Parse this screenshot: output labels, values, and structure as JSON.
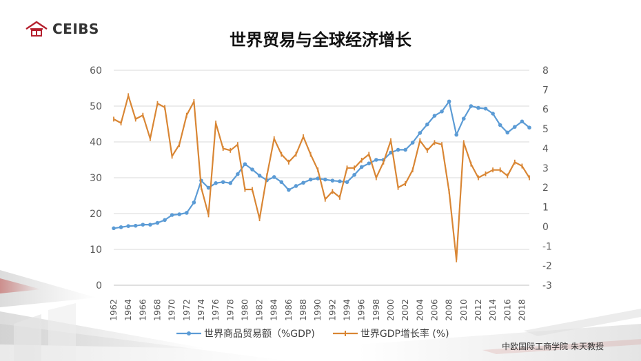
{
  "header": {
    "logo_text": "CEIBS",
    "title": "世界贸易与全球经济增长"
  },
  "footer": {
    "credit": "中欧国际工商学院 朱天教授"
  },
  "colors": {
    "trade": "#5b9bd5",
    "gdp": "#d98634",
    "logo_red": "#b5202e",
    "axis_text": "#595959",
    "grid": "#d9d9d9"
  },
  "chart_data": {
    "type": "line",
    "title": "",
    "x": [
      1962,
      1963,
      1964,
      1965,
      1966,
      1967,
      1968,
      1969,
      1970,
      1971,
      1972,
      1973,
      1974,
      1975,
      1976,
      1977,
      1978,
      1979,
      1980,
      1981,
      1982,
      1983,
      1984,
      1985,
      1986,
      1987,
      1988,
      1989,
      1990,
      1991,
      1992,
      1993,
      1994,
      1995,
      1996,
      1997,
      1998,
      1999,
      2000,
      2001,
      2002,
      2003,
      2004,
      2005,
      2006,
      2007,
      2008,
      2009,
      2010,
      2011,
      2012,
      2013,
      2014,
      2015,
      2016,
      2017,
      2018,
      2019
    ],
    "x_tick_labels": [
      "1962",
      "1964",
      "1966",
      "1968",
      "1970",
      "1972",
      "1974",
      "1976",
      "1978",
      "1980",
      "1982",
      "1984",
      "1986",
      "1988",
      "1990",
      "1992",
      "1994",
      "1996",
      "1998",
      "2000",
      "2002",
      "2004",
      "2006",
      "2008",
      "2010",
      "2012",
      "2014",
      "2016",
      "2018"
    ],
    "y_left": {
      "min": 0,
      "max": 60,
      "step": 10
    },
    "y_right": {
      "min": -3,
      "max": 8,
      "step": 1
    },
    "grid": true,
    "legend_position": "bottom",
    "series": [
      {
        "name": "世界商品贸易额（%GDP)",
        "axis": "left",
        "values": [
          15.9,
          16.2,
          16.5,
          16.6,
          16.9,
          16.9,
          17.4,
          18.2,
          19.6,
          19.8,
          20.2,
          23.1,
          29.2,
          27.2,
          28.5,
          28.8,
          28.5,
          31.0,
          33.8,
          32.3,
          30.6,
          29.3,
          30.2,
          28.8,
          26.6,
          27.7,
          28.6,
          29.5,
          29.8,
          29.5,
          29.2,
          29.0,
          28.8,
          30.8,
          33.0,
          34.0,
          35.0,
          35.0,
          37.0,
          37.8,
          37.8,
          39.8,
          42.5,
          44.9,
          47.3,
          48.5,
          51.3,
          42.0,
          46.5,
          50.0,
          49.5,
          49.3,
          47.9,
          44.7,
          42.6,
          44.2,
          45.7,
          44.0
        ]
      },
      {
        "name": "世界GDP增长率 (%)",
        "axis": "right",
        "values": [
          5.5,
          5.3,
          6.7,
          5.5,
          5.7,
          4.5,
          6.3,
          6.1,
          3.6,
          4.2,
          5.7,
          6.4,
          2.0,
          0.6,
          5.3,
          4.0,
          3.9,
          4.2,
          1.9,
          1.9,
          0.4,
          2.6,
          4.5,
          3.7,
          3.3,
          3.7,
          4.6,
          3.7,
          2.9,
          1.4,
          1.8,
          1.5,
          3.0,
          3.0,
          3.4,
          3.7,
          2.5,
          3.3,
          4.4,
          2.0,
          2.2,
          2.9,
          4.4,
          3.9,
          4.3,
          4.2,
          1.8,
          -1.7,
          4.3,
          3.2,
          2.5,
          2.7,
          2.9,
          2.9,
          2.6,
          3.3,
          3.1,
          2.5
        ]
      }
    ]
  }
}
